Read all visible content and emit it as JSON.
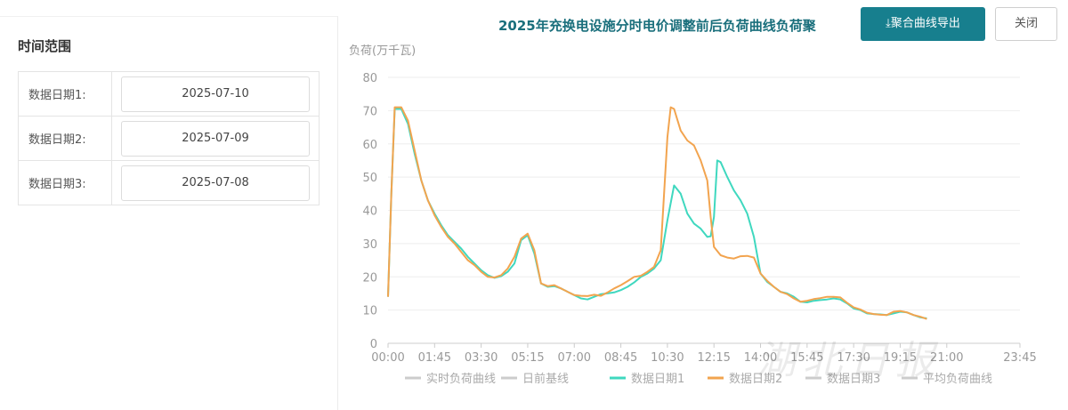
{
  "left_panel": {
    "title": "时间范围",
    "rows": [
      {
        "label": "数据日期1:",
        "value": "2025-07-10"
      },
      {
        "label": "数据日期2:",
        "value": "2025-07-09"
      },
      {
        "label": "数据日期3:",
        "value": "2025-07-08"
      }
    ]
  },
  "toolbar": {
    "export_label": "⤓聚合曲线导出",
    "close_label": "关闭"
  },
  "colors": {
    "accent": "#177f8e",
    "title": "#1a6f7c",
    "series1": "#3fd8bf",
    "series2": "#f2a44f",
    "inactive": "#cccccc"
  },
  "chart_data": {
    "type": "line",
    "title": "2025年充换电设施分时电价调整前后负荷曲线负荷聚",
    "ylabel": "负荷(万千瓦)",
    "ylim": [
      0,
      80
    ],
    "yticks": [
      0,
      10,
      20,
      30,
      40,
      50,
      60,
      70,
      80
    ],
    "xlim": [
      0,
      95
    ],
    "xtick_labels": [
      "00:00",
      "01:45",
      "03:30",
      "05:15",
      "07:00",
      "08:45",
      "10:30",
      "12:15",
      "14:00",
      "15:45",
      "17:30",
      "19:15",
      "21:00",
      "23:45"
    ],
    "xtick_index": [
      0,
      7,
      14,
      21,
      28,
      35,
      42,
      49,
      56,
      63,
      70,
      77,
      84,
      95
    ],
    "legend": [
      "实时负荷曲线",
      "日前基线",
      "数据日期1",
      "数据日期2",
      "数据日期3",
      "平均负荷曲线"
    ],
    "legend_position": "bottom",
    "grid": true,
    "series": [
      {
        "name": "数据日期1",
        "color": "#3fd8bf",
        "points": [
          [
            0,
            14
          ],
          [
            0.5,
            45
          ],
          [
            1,
            70.5
          ],
          [
            2,
            70.5
          ],
          [
            3,
            66
          ],
          [
            4,
            57
          ],
          [
            5,
            49
          ],
          [
            6,
            43
          ],
          [
            7,
            39
          ],
          [
            8,
            35.5
          ],
          [
            9,
            32.5
          ],
          [
            10,
            30.5
          ],
          [
            11,
            28.5
          ],
          [
            12,
            26
          ],
          [
            13,
            24
          ],
          [
            14,
            22
          ],
          [
            15,
            20.5
          ],
          [
            16,
            19.7
          ],
          [
            17,
            20.2
          ],
          [
            18,
            21.5
          ],
          [
            19,
            24
          ],
          [
            20,
            31
          ],
          [
            21,
            32.5
          ],
          [
            22,
            27
          ],
          [
            23,
            18
          ],
          [
            24,
            17
          ],
          [
            25,
            17.2
          ],
          [
            26,
            16.5
          ],
          [
            27,
            15.5
          ],
          [
            28,
            14.5
          ],
          [
            29,
            13.5
          ],
          [
            30,
            13.2
          ],
          [
            31,
            14
          ],
          [
            32,
            14.8
          ],
          [
            33,
            15
          ],
          [
            34,
            15.3
          ],
          [
            35,
            16
          ],
          [
            36,
            17
          ],
          [
            37,
            18.3
          ],
          [
            38,
            20
          ],
          [
            39,
            21
          ],
          [
            40,
            22.5
          ],
          [
            41,
            25
          ],
          [
            42,
            37
          ],
          [
            43,
            47.5
          ],
          [
            44,
            45
          ],
          [
            45,
            39
          ],
          [
            46,
            36
          ],
          [
            47,
            34.5
          ],
          [
            48,
            32
          ],
          [
            48.5,
            32.2
          ],
          [
            49,
            38
          ],
          [
            49.5,
            55
          ],
          [
            50,
            54.5
          ],
          [
            51,
            50
          ],
          [
            52,
            46
          ],
          [
            53,
            43
          ],
          [
            54,
            39
          ],
          [
            55,
            32
          ],
          [
            56,
            21
          ],
          [
            57,
            18.5
          ],
          [
            58,
            17
          ],
          [
            59,
            15.5
          ],
          [
            60,
            15
          ],
          [
            61,
            14
          ],
          [
            62,
            12.5
          ],
          [
            63,
            12.3
          ],
          [
            64,
            12.8
          ],
          [
            65,
            13
          ],
          [
            66,
            13.2
          ],
          [
            67,
            13.5
          ],
          [
            68,
            13.2
          ],
          [
            69,
            12
          ],
          [
            70,
            10.5
          ],
          [
            71,
            10
          ],
          [
            72,
            9
          ],
          [
            73,
            8.8
          ],
          [
            74,
            8.7
          ],
          [
            75,
            8.5
          ],
          [
            76,
            9
          ],
          [
            77,
            9.5
          ],
          [
            78,
            9.3
          ],
          [
            79,
            8.5
          ],
          [
            80,
            7.8
          ],
          [
            81,
            7.5
          ]
        ]
      },
      {
        "name": "数据日期2",
        "color": "#f2a44f",
        "points": [
          [
            0,
            14
          ],
          [
            0.5,
            45
          ],
          [
            1,
            71
          ],
          [
            2,
            71
          ],
          [
            3,
            67
          ],
          [
            4,
            58
          ],
          [
            5,
            49
          ],
          [
            6,
            43
          ],
          [
            7,
            38.5
          ],
          [
            8,
            35
          ],
          [
            9,
            32
          ],
          [
            10,
            30
          ],
          [
            11,
            27.5
          ],
          [
            12,
            25
          ],
          [
            13,
            23.5
          ],
          [
            14,
            21.5
          ],
          [
            15,
            20
          ],
          [
            16,
            19.8
          ],
          [
            17,
            20.5
          ],
          [
            18,
            22.5
          ],
          [
            19,
            26
          ],
          [
            20,
            31.5
          ],
          [
            21,
            33
          ],
          [
            22,
            28
          ],
          [
            23,
            18
          ],
          [
            24,
            17.2
          ],
          [
            25,
            17.5
          ],
          [
            26,
            16.5
          ],
          [
            27,
            15.5
          ],
          [
            28,
            14.5
          ],
          [
            29,
            14.3
          ],
          [
            30,
            14.2
          ],
          [
            31,
            14.6
          ],
          [
            32,
            14.3
          ],
          [
            33,
            15.3
          ],
          [
            34,
            16.5
          ],
          [
            35,
            17.5
          ],
          [
            36,
            18.7
          ],
          [
            37,
            20
          ],
          [
            38,
            20.3
          ],
          [
            39,
            21.5
          ],
          [
            40,
            23
          ],
          [
            41,
            28
          ],
          [
            42,
            62
          ],
          [
            42.5,
            71
          ],
          [
            43,
            70.5
          ],
          [
            44,
            64
          ],
          [
            45,
            61
          ],
          [
            46,
            59.5
          ],
          [
            47,
            55
          ],
          [
            48,
            49
          ],
          [
            48.5,
            38
          ],
          [
            49,
            29
          ],
          [
            50,
            26.5
          ],
          [
            51,
            25.8
          ],
          [
            52,
            25.5
          ],
          [
            53,
            26.2
          ],
          [
            54,
            26.3
          ],
          [
            55,
            25.8
          ],
          [
            56,
            21
          ],
          [
            57,
            18.8
          ],
          [
            58,
            17
          ],
          [
            59,
            15.5
          ],
          [
            60,
            14.8
          ],
          [
            61,
            13.5
          ],
          [
            62,
            12.5
          ],
          [
            63,
            12.8
          ],
          [
            64,
            13.3
          ],
          [
            65,
            13.6
          ],
          [
            66,
            14
          ],
          [
            67,
            14
          ],
          [
            68,
            13.8
          ],
          [
            69,
            12.2
          ],
          [
            70,
            10.8
          ],
          [
            71,
            10.2
          ],
          [
            72,
            9.2
          ],
          [
            73,
            8.8
          ],
          [
            74,
            8.6
          ],
          [
            75,
            8.5
          ],
          [
            76,
            9.5
          ],
          [
            77,
            9.7
          ],
          [
            78,
            9.3
          ],
          [
            79,
            8.5
          ],
          [
            80,
            8
          ],
          [
            81,
            7.3
          ]
        ]
      }
    ]
  },
  "watermark": "湖北日报"
}
